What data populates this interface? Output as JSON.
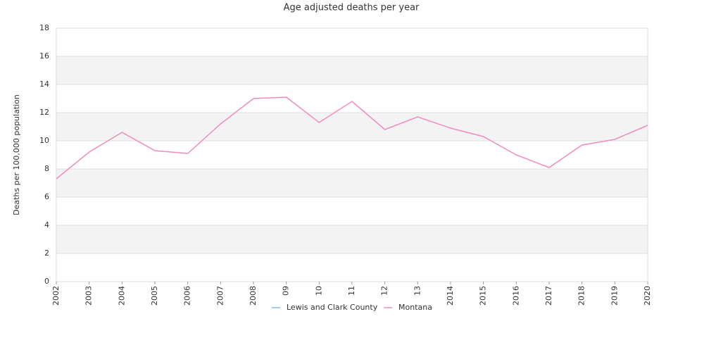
{
  "chart_data": {
    "type": "line",
    "title": "Age adjusted deaths per year",
    "y_label": "Deaths per 100,000 population",
    "categories": [
      "2002",
      "2003",
      "2004",
      "2005",
      "2006",
      "2007",
      "2008",
      "09",
      "10",
      "11",
      "12",
      "13",
      "2014",
      "2015",
      "2016",
      "2017",
      "2018",
      "2019",
      "2020"
    ],
    "series": [
      {
        "name": "Lewis and Clark County",
        "color": "#7db9e8",
        "values": [
          null,
          null,
          null,
          null,
          null,
          null,
          null,
          null,
          null,
          null,
          null,
          null,
          null,
          null,
          null,
          null,
          null,
          null,
          null
        ]
      },
      {
        "name": "Montana",
        "color": "#f08cc0",
        "values": [
          7.3,
          9.2,
          10.6,
          9.3,
          9.1,
          11.2,
          13.0,
          13.1,
          11.3,
          12.8,
          10.8,
          11.7,
          10.9,
          10.3,
          9.0,
          8.1,
          9.7,
          10.1,
          11.1
        ]
      }
    ],
    "ylim": [
      0,
      18
    ],
    "yticks": [
      0,
      2,
      4,
      6,
      8,
      10,
      12,
      14,
      16,
      18
    ],
    "grid": true,
    "legend": "bottom"
  }
}
